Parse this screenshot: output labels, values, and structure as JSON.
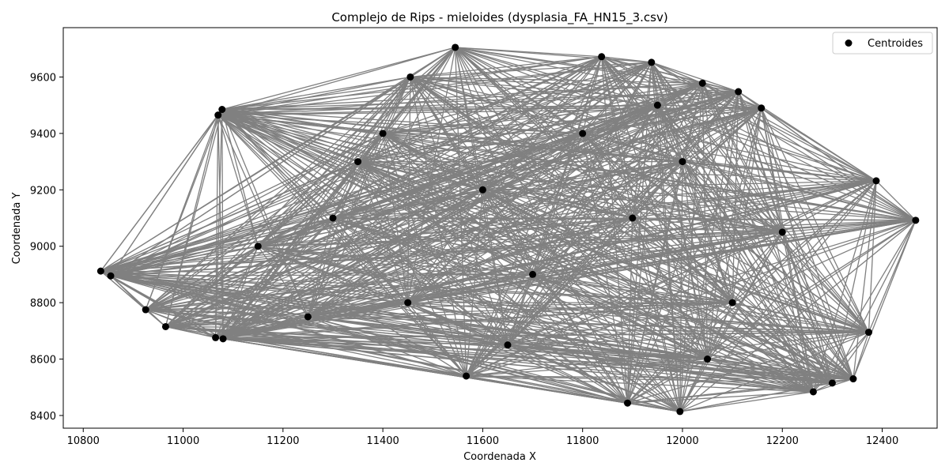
{
  "chart_data": {
    "type": "scatter",
    "title": "Complejo de Rips - mieloides (dysplasia_FA_HN15_3.csv)",
    "xlabel": "Coordenada X",
    "ylabel": "Coordenada Y",
    "xlim": [
      10760,
      12510
    ],
    "ylim": [
      8355,
      9775
    ],
    "xticks": [
      10800,
      11000,
      11200,
      11400,
      11600,
      11800,
      12000,
      12200,
      12400
    ],
    "yticks": [
      8400,
      8600,
      8800,
      9000,
      9200,
      9400,
      9600
    ],
    "grid": false,
    "legend": {
      "position": "top-right",
      "entries": [
        "Centroides"
      ]
    },
    "point_color": "#000000",
    "edge_color": "#808080",
    "series": [
      {
        "name": "Centroides",
        "points": [
          [
            10835,
            8912
          ],
          [
            10855,
            8895
          ],
          [
            10925,
            8775
          ],
          [
            10965,
            8715
          ],
          [
            11065,
            8676
          ],
          [
            11080,
            8672
          ],
          [
            11070,
            9465
          ],
          [
            11078,
            9485
          ],
          [
            11545,
            9705
          ],
          [
            11455,
            9600
          ],
          [
            11838,
            9672
          ],
          [
            11938,
            9652
          ],
          [
            12040,
            9578
          ],
          [
            12112,
            9548
          ],
          [
            12158,
            9490
          ],
          [
            12388,
            9232
          ],
          [
            12467,
            9092
          ],
          [
            12373,
            8695
          ],
          [
            12342,
            8530
          ],
          [
            12300,
            8515
          ],
          [
            12262,
            8484
          ],
          [
            11995,
            8414
          ],
          [
            11890,
            8444
          ],
          [
            11567,
            8540
          ],
          [
            11300,
            9100
          ],
          [
            11600,
            9200
          ],
          [
            11700,
            8900
          ],
          [
            11900,
            9100
          ],
          [
            12100,
            8800
          ],
          [
            11450,
            8800
          ],
          [
            11250,
            8750
          ],
          [
            11800,
            9400
          ],
          [
            12000,
            9300
          ],
          [
            11400,
            9400
          ],
          [
            12200,
            9050
          ],
          [
            11650,
            8650
          ],
          [
            11150,
            9000
          ],
          [
            11350,
            9300
          ],
          [
            12050,
            8600
          ],
          [
            11950,
            9500
          ]
        ]
      }
    ]
  }
}
